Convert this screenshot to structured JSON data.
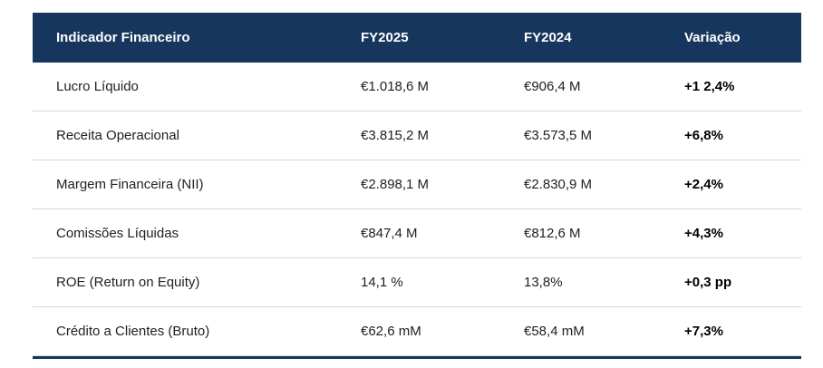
{
  "colors": {
    "header_bg": "#17365d",
    "header_text": "#ffffff",
    "row_divider": "#d8d8d8",
    "bottom_border": "#17365d",
    "body_text": "#212121",
    "variation_text": "#000000",
    "spellcheck_underline": "#e00000"
  },
  "chart_data": {
    "type": "table",
    "title": "",
    "columns": [
      "Indicador Financeiro",
      "FY2025",
      "FY2024",
      "Variação"
    ],
    "rows": [
      [
        "Lucro Líquido",
        "€1.018,6 M",
        "€906,4 M",
        "+1 2,4%"
      ],
      [
        "Receita Operacional",
        "€3.815,2 M",
        "€3.573,5 M",
        "+6,8%"
      ],
      [
        "Margem Financeira (NII)",
        "€2.898,1 M",
        "€2.830,9 M",
        "+2,4%"
      ],
      [
        "Comissões Líquidas",
        "€847,4 M",
        "€812,6 M",
        "+4,3%"
      ],
      [
        "ROE (Return on Equity)",
        "14,1 %",
        "13,8%",
        "+0,3 pp"
      ],
      [
        "Crédito a Clientes (Bruto)",
        "€62,6 mM",
        "€58,4 mM",
        "+7,3%"
      ]
    ],
    "notes": "FY2025 header shown with red spellcheck wavy underline; variation column bold"
  }
}
